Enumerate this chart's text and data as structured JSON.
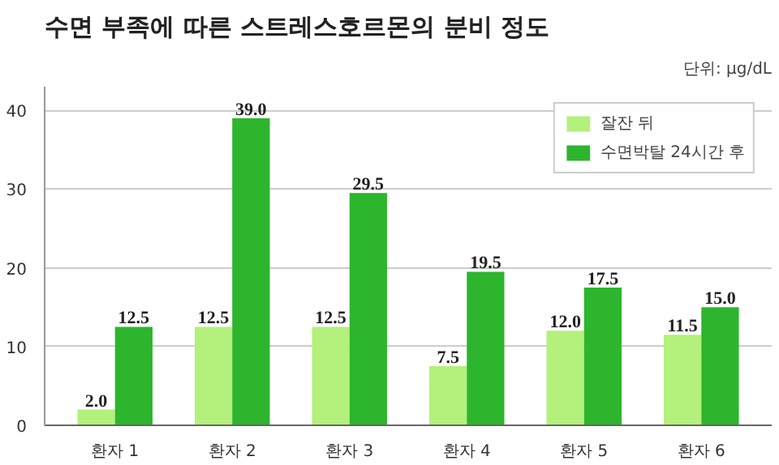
{
  "chart_data": {
    "type": "bar",
    "title": "수면 부족에 따른 스트레스호르몬의 분비 정도",
    "subtitle": "단위: μg/dL",
    "categories": [
      "환자 1",
      "환자 2",
      "환자 3",
      "환자 4",
      "환자 5",
      "환자 6"
    ],
    "series": [
      {
        "name": "잘잔 뒤",
        "color": "#b3f07c",
        "values": [
          2.0,
          12.5,
          12.5,
          7.5,
          12.0,
          11.5
        ],
        "value_labels": [
          "2.0",
          "12.5",
          "12.5",
          "7.5",
          "12.0",
          "11.5"
        ]
      },
      {
        "name": "수면박탈 24시간 후",
        "color": "#2db52d",
        "values": [
          12.5,
          39.0,
          29.5,
          19.5,
          17.5,
          15.0
        ],
        "value_labels": [
          "12.5",
          "39.0",
          "29.5",
          "19.5",
          "17.5",
          "15.0"
        ]
      }
    ],
    "ylim": [
      0,
      43
    ],
    "yticks": [
      0,
      10,
      20,
      30,
      40
    ],
    "grid": "y",
    "legend": "top right"
  }
}
